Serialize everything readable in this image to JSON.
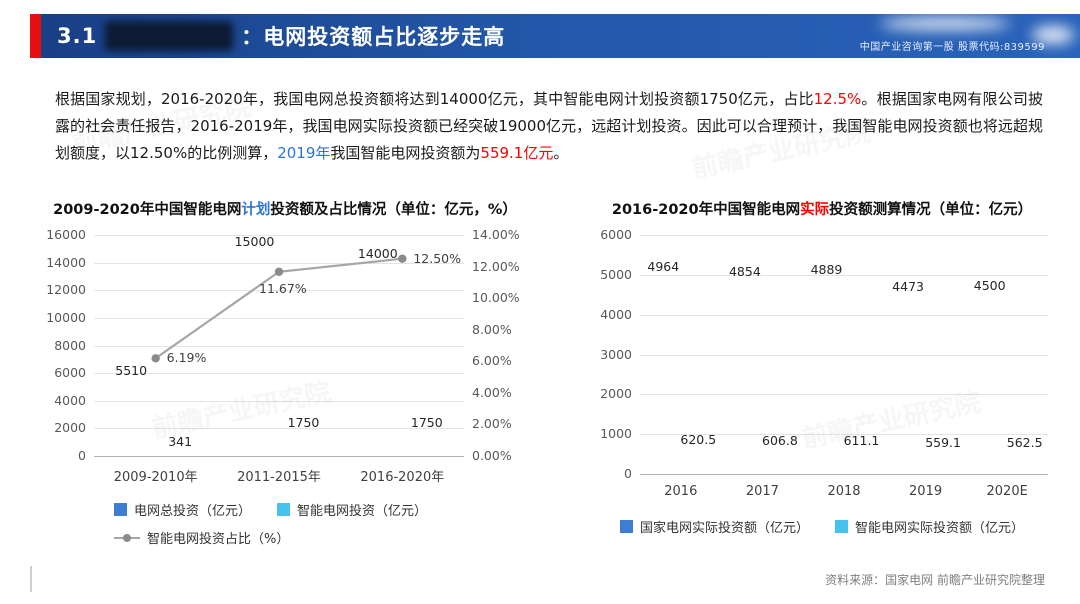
{
  "header": {
    "section_no": "3.1",
    "separator": "：",
    "title": "电网投资额占比逐步走高",
    "brand_line": "中国产业咨询第一股  股票代码:839599"
  },
  "paragraph": {
    "segments": [
      {
        "text": "根据国家规划，2016-2020年，我国电网总投资额将达到14000亿元，其中智能电网计划投资额1750亿元，占比",
        "color": "default"
      },
      {
        "text": "12.5%",
        "color": "red"
      },
      {
        "text": "。根据国家电网有限公司披露的社会责任报告，2016-2019年，我国电网实际投资额已经突破19000亿元，远超计划投资。因此可以合理预计，我国智能电网投资额也将远超规划额度，以12.50%的比例测算，",
        "color": "default"
      },
      {
        "text": "2019年",
        "color": "blue"
      },
      {
        "text": "我国智能电网投资额为",
        "color": "default"
      },
      {
        "text": "559.1亿元",
        "color": "red"
      },
      {
        "text": "。",
        "color": "default"
      }
    ]
  },
  "chart_data": [
    {
      "type": "bar+line",
      "title_segments": [
        {
          "text": "2009-2020年中国智能电网",
          "color": "default"
        },
        {
          "text": "计划",
          "color": "blue"
        },
        {
          "text": "投资额及占比情况（单位：亿元，%）",
          "color": "default"
        }
      ],
      "categories": [
        "2009-2010年",
        "2011-2015年",
        "2016-2020年"
      ],
      "series": [
        {
          "name": "电网总投资（亿元）",
          "color": "#3e7dd1",
          "values": [
            5510,
            15000,
            14000
          ]
        },
        {
          "name": "智能电网投资（亿元）",
          "color": "#47c2ec",
          "values": [
            341,
            1750,
            1750
          ]
        }
      ],
      "line_series": {
        "name": "智能电网投资占比（%）",
        "color": "#a6a6a6",
        "values": [
          6.19,
          11.67,
          12.5
        ],
        "labels": [
          "6.19%",
          "11.67%",
          "12.50%"
        ]
      },
      "y_left": {
        "min": 0,
        "max": 16000,
        "step": 2000
      },
      "y_right": {
        "min": 0,
        "max": 14,
        "step": 2,
        "suffix": "%"
      },
      "legend_rows": [
        [
          "电网总投资（亿元）",
          "智能电网投资（亿元）"
        ],
        [
          "智能电网投资占比（%）"
        ]
      ]
    },
    {
      "type": "bar",
      "title_segments": [
        {
          "text": "2016-2020年中国智能电网",
          "color": "default"
        },
        {
          "text": "实际",
          "color": "red"
        },
        {
          "text": "投资额测算情况（单位：亿元）",
          "color": "default"
        }
      ],
      "categories": [
        "2016",
        "2017",
        "2018",
        "2019",
        "2020E"
      ],
      "series": [
        {
          "name": "国家电网实际投资额（亿元）",
          "color": "#3e7dd1",
          "values": [
            4964,
            4854,
            4889,
            4473,
            4500
          ]
        },
        {
          "name": "智能电网实际投资额（亿元）",
          "color": "#47c2ec",
          "values": [
            620.5,
            606.8,
            611.1,
            559.1,
            562.5
          ]
        }
      ],
      "y_left": {
        "min": 0,
        "max": 6000,
        "step": 1000
      },
      "legend_rows": [
        [
          "国家电网实际投资额（亿元）",
          "智能电网实际投资额（亿元）"
        ]
      ]
    }
  ],
  "footer": {
    "source": "资料来源：国家电网  前瞻产业研究院整理"
  },
  "watermark": {
    "text": "前瞻产业研究院"
  },
  "colors": {
    "header_blue": "#2257a8",
    "accent_red": "#e60f12",
    "bar_blue": "#3e7dd1",
    "bar_lightblue": "#47c2ec",
    "line_gray": "#a6a6a6",
    "text_red": "#fe0000",
    "text_blue": "#2d74d8"
  }
}
